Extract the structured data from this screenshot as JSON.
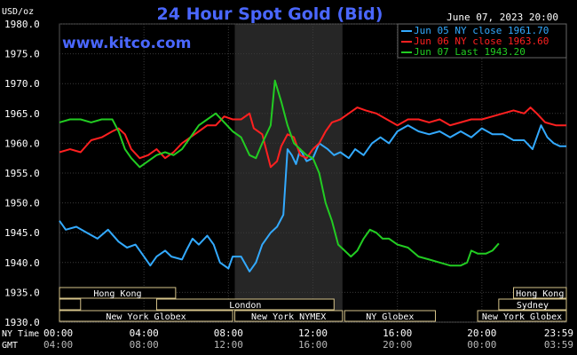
{
  "header": {
    "unit": "USD/oz",
    "title": "24 Hour Spot Gold (Bid)",
    "date": "June 07, 2023 20:00",
    "site": "www.kitco.com"
  },
  "chart_data": {
    "type": "line",
    "title": "24 Hour Spot Gold (Bid)",
    "ylabel": "USD/oz",
    "ylim": [
      1930,
      1980
    ],
    "y_ticks": [
      "1980.0",
      "1975.0",
      "1970.0",
      "1965.0",
      "1960.0",
      "1955.0",
      "1950.0",
      "1945.0",
      "1940.0",
      "1935.0",
      "1930.0"
    ],
    "xlim": [
      0,
      24
    ],
    "x_ticks": [
      "00:00",
      "04:00",
      "08:00",
      "12:00",
      "16:00",
      "20:00",
      "23:59"
    ],
    "x_ticks_gmt": [
      "04:00",
      "08:00",
      "12:00",
      "16:00",
      "20:00",
      "00:00",
      "03:59"
    ],
    "x_axis_names": [
      "NY Time",
      "GMT"
    ],
    "grid": true,
    "legend_position": "top-right",
    "highlight_band": [
      8.3,
      13.4
    ],
    "series": [
      {
        "name": "Jun 05 NY close 1961.70",
        "color": "#33aaff",
        "points": [
          [
            0,
            1947
          ],
          [
            0.3,
            1945.5
          ],
          [
            0.8,
            1946
          ],
          [
            1.3,
            1945
          ],
          [
            1.8,
            1944
          ],
          [
            2.3,
            1945.5
          ],
          [
            2.8,
            1943.5
          ],
          [
            3.2,
            1942.5
          ],
          [
            3.6,
            1943
          ],
          [
            4.0,
            1941
          ],
          [
            4.3,
            1939.5
          ],
          [
            4.6,
            1941
          ],
          [
            5.0,
            1942
          ],
          [
            5.3,
            1941
          ],
          [
            5.8,
            1940.5
          ],
          [
            6.0,
            1942
          ],
          [
            6.3,
            1944
          ],
          [
            6.6,
            1943
          ],
          [
            7.0,
            1944.5
          ],
          [
            7.3,
            1943
          ],
          [
            7.6,
            1940
          ],
          [
            8.0,
            1939
          ],
          [
            8.2,
            1941
          ],
          [
            8.6,
            1941
          ],
          [
            9.0,
            1938.5
          ],
          [
            9.3,
            1940
          ],
          [
            9.6,
            1943
          ],
          [
            10.0,
            1945
          ],
          [
            10.3,
            1946
          ],
          [
            10.6,
            1948
          ],
          [
            10.8,
            1959
          ],
          [
            11.0,
            1958
          ],
          [
            11.2,
            1956.5
          ],
          [
            11.4,
            1959
          ],
          [
            11.7,
            1957
          ],
          [
            12.0,
            1957.5
          ],
          [
            12.3,
            1960
          ],
          [
            12.7,
            1959
          ],
          [
            13.0,
            1958
          ],
          [
            13.3,
            1958.5
          ],
          [
            13.7,
            1957.5
          ],
          [
            14.0,
            1959
          ],
          [
            14.4,
            1958
          ],
          [
            14.8,
            1960
          ],
          [
            15.2,
            1961
          ],
          [
            15.6,
            1960
          ],
          [
            16.0,
            1962
          ],
          [
            16.5,
            1963
          ],
          [
            17.0,
            1962
          ],
          [
            17.5,
            1961.5
          ],
          [
            18.0,
            1962
          ],
          [
            18.5,
            1961
          ],
          [
            19.0,
            1962
          ],
          [
            19.5,
            1961
          ],
          [
            20.0,
            1962.5
          ],
          [
            20.5,
            1961.5
          ],
          [
            21.0,
            1961.5
          ],
          [
            21.5,
            1960.5
          ],
          [
            22.0,
            1960.5
          ],
          [
            22.4,
            1959
          ],
          [
            22.6,
            1961
          ],
          [
            22.8,
            1963
          ],
          [
            23.1,
            1961
          ],
          [
            23.4,
            1960
          ],
          [
            23.7,
            1959.5
          ],
          [
            24,
            1959.5
          ]
        ]
      },
      {
        "name": "Jun 06 NY close 1963.60",
        "color": "#ff2020",
        "points": [
          [
            0,
            1958.5
          ],
          [
            0.5,
            1959
          ],
          [
            1.0,
            1958.5
          ],
          [
            1.5,
            1960.5
          ],
          [
            2.0,
            1961
          ],
          [
            2.5,
            1962
          ],
          [
            2.8,
            1962.5
          ],
          [
            3.1,
            1961.5
          ],
          [
            3.4,
            1959
          ],
          [
            3.8,
            1957.5
          ],
          [
            4.2,
            1958
          ],
          [
            4.6,
            1959
          ],
          [
            5.0,
            1957.5
          ],
          [
            5.4,
            1958.5
          ],
          [
            5.8,
            1960
          ],
          [
            6.2,
            1961
          ],
          [
            6.6,
            1962
          ],
          [
            7.0,
            1963
          ],
          [
            7.4,
            1963
          ],
          [
            7.8,
            1964.5
          ],
          [
            8.2,
            1964
          ],
          [
            8.6,
            1964
          ],
          [
            9.0,
            1965
          ],
          [
            9.2,
            1962.5
          ],
          [
            9.6,
            1961.5
          ],
          [
            10.0,
            1956
          ],
          [
            10.3,
            1957
          ],
          [
            10.5,
            1959.5
          ],
          [
            10.8,
            1961.5
          ],
          [
            11.1,
            1961
          ],
          [
            11.4,
            1958
          ],
          [
            11.7,
            1957.5
          ],
          [
            12.0,
            1959
          ],
          [
            12.3,
            1960
          ],
          [
            12.6,
            1962
          ],
          [
            12.9,
            1963.5
          ],
          [
            13.3,
            1964
          ],
          [
            13.7,
            1965
          ],
          [
            14.1,
            1966
          ],
          [
            14.5,
            1965.5
          ],
          [
            15.0,
            1965
          ],
          [
            15.5,
            1964
          ],
          [
            16.0,
            1963
          ],
          [
            16.5,
            1964
          ],
          [
            17.0,
            1964
          ],
          [
            17.5,
            1963.5
          ],
          [
            18.0,
            1964
          ],
          [
            18.5,
            1963
          ],
          [
            19.0,
            1963.5
          ],
          [
            19.5,
            1964
          ],
          [
            20.0,
            1964
          ],
          [
            20.5,
            1964.5
          ],
          [
            21.0,
            1965
          ],
          [
            21.5,
            1965.5
          ],
          [
            22.0,
            1965
          ],
          [
            22.3,
            1966
          ],
          [
            22.6,
            1965
          ],
          [
            23.0,
            1963.5
          ],
          [
            23.5,
            1963
          ],
          [
            24,
            1963
          ]
        ]
      },
      {
        "name": "Jun 07 Last 1943.20",
        "color": "#22cc22",
        "points": [
          [
            0,
            1963.5
          ],
          [
            0.5,
            1964
          ],
          [
            1.0,
            1964
          ],
          [
            1.5,
            1963.5
          ],
          [
            2.0,
            1964
          ],
          [
            2.5,
            1964
          ],
          [
            2.8,
            1962
          ],
          [
            3.1,
            1959
          ],
          [
            3.4,
            1957.5
          ],
          [
            3.8,
            1956
          ],
          [
            4.2,
            1957
          ],
          [
            4.6,
            1958
          ],
          [
            5.0,
            1958.5
          ],
          [
            5.4,
            1958
          ],
          [
            5.8,
            1959
          ],
          [
            6.2,
            1961
          ],
          [
            6.6,
            1963
          ],
          [
            7.0,
            1964
          ],
          [
            7.4,
            1965
          ],
          [
            7.8,
            1963.5
          ],
          [
            8.2,
            1962
          ],
          [
            8.6,
            1961
          ],
          [
            9.0,
            1958
          ],
          [
            9.3,
            1957.5
          ],
          [
            9.6,
            1960
          ],
          [
            10.0,
            1963
          ],
          [
            10.2,
            1970.5
          ],
          [
            10.5,
            1967
          ],
          [
            10.8,
            1963
          ],
          [
            11.1,
            1960
          ],
          [
            11.4,
            1959
          ],
          [
            11.7,
            1958
          ],
          [
            12.0,
            1957.5
          ],
          [
            12.3,
            1955
          ],
          [
            12.6,
            1950
          ],
          [
            12.9,
            1947
          ],
          [
            13.2,
            1943
          ],
          [
            13.5,
            1942
          ],
          [
            13.8,
            1941
          ],
          [
            14.1,
            1942
          ],
          [
            14.4,
            1944
          ],
          [
            14.7,
            1945.5
          ],
          [
            15.0,
            1945
          ],
          [
            15.3,
            1944
          ],
          [
            15.6,
            1944
          ],
          [
            16.0,
            1943
          ],
          [
            16.5,
            1942.5
          ],
          [
            17.0,
            1941
          ],
          [
            17.5,
            1940.5
          ],
          [
            18.0,
            1940
          ],
          [
            18.5,
            1939.5
          ],
          [
            19.0,
            1939.5
          ],
          [
            19.3,
            1940
          ],
          [
            19.5,
            1942
          ],
          [
            19.8,
            1941.5
          ],
          [
            20.2,
            1941.5
          ],
          [
            20.5,
            1942
          ],
          [
            20.8,
            1943.2
          ]
        ]
      }
    ]
  },
  "sessions": {
    "row1": [
      {
        "label": "Hong Kong",
        "start": 0,
        "end": 5.5
      },
      {
        "label": "Hong Kong",
        "start": 21.5,
        "end": 24
      }
    ],
    "row2": [
      {
        "label": "",
        "start": 0,
        "end": 1.0
      },
      {
        "label": "London",
        "start": 4.6,
        "end": 13.0
      },
      {
        "label": "Sydney",
        "start": 20.8,
        "end": 24
      }
    ],
    "row3": [
      {
        "label": "New York Globex",
        "start": 0,
        "end": 8.2
      },
      {
        "label": "New York NYMEX",
        "start": 8.3,
        "end": 13.4
      },
      {
        "label": "NY Globex",
        "start": 13.5,
        "end": 17.8
      },
      {
        "label": "New York Globex",
        "start": 19.8,
        "end": 24
      }
    ]
  }
}
